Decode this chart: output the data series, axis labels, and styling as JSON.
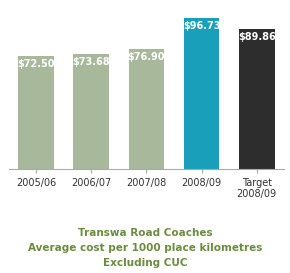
{
  "categories": [
    "2005/06",
    "2006/07",
    "2007/08",
    "2008/09",
    "Target\n2008/09"
  ],
  "values": [
    72.5,
    73.68,
    76.9,
    96.73,
    89.86
  ],
  "labels": [
    "$72.50",
    "$73.68",
    "$76.90",
    "$96.73",
    "$89.86"
  ],
  "bar_colors": [
    "#a8b89a",
    "#a8b89a",
    "#a8b89a",
    "#1a9fbb",
    "#2d2d2d"
  ],
  "title_line1": "Transwa Road Coaches",
  "title_line2": "Average cost per 1000 place kilometres",
  "title_line3": "Excluding CUC",
  "title_color": "#6b8c3e",
  "ylim": [
    0,
    105
  ],
  "label_fontsize": 7.0,
  "tick_fontsize": 7.0,
  "title_fontsize": 7.5,
  "background_color": "#ffffff"
}
